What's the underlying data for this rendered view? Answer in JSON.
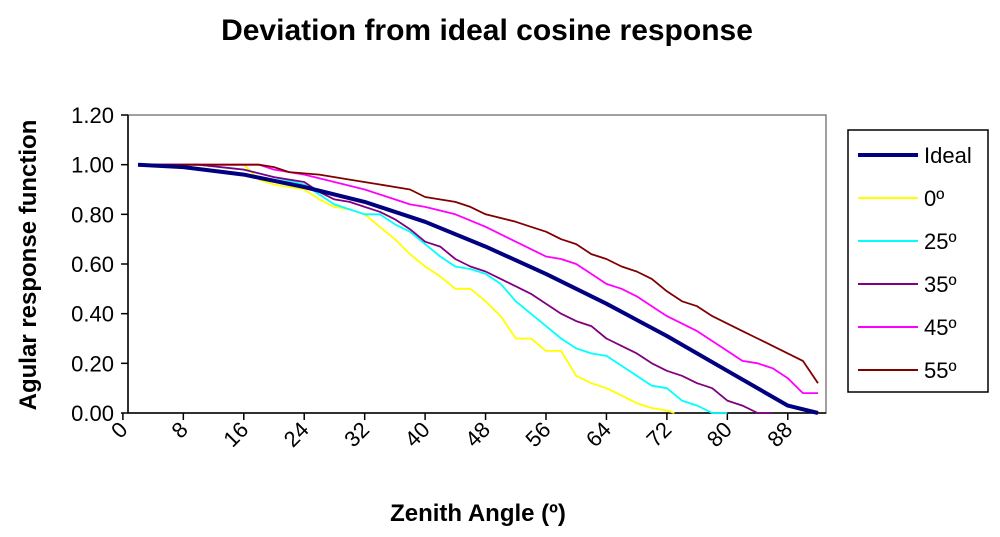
{
  "chart_data": {
    "type": "line",
    "title": "Deviation from ideal cosine response",
    "xlabel": "Zenith Angle (º)",
    "ylabel": "Agular response function",
    "xlim": [
      0,
      92
    ],
    "ylim": [
      0,
      1.2
    ],
    "x_ticks": [
      0,
      8,
      16,
      24,
      32,
      40,
      48,
      56,
      64,
      72,
      80,
      88
    ],
    "y_ticks": [
      "0.00",
      "0.20",
      "0.40",
      "0.60",
      "0.80",
      "1.00",
      "1.20"
    ],
    "legend_position": "right",
    "grid": false,
    "series": [
      {
        "name": "Ideal",
        "color": "#000080",
        "x": [
          2,
          8,
          16,
          24,
          32,
          40,
          48,
          56,
          64,
          72,
          80,
          88,
          92
        ],
        "values": [
          1.0,
          0.99,
          0.96,
          0.91,
          0.85,
          0.77,
          0.67,
          0.56,
          0.44,
          0.31,
          0.17,
          0.03,
          0.0
        ]
      },
      {
        "name": "0º",
        "color": "#ffff00",
        "x": [
          2,
          10,
          16,
          18,
          20,
          24,
          26,
          28,
          30,
          32,
          34,
          36,
          38,
          40,
          42,
          44,
          46,
          48,
          50,
          52,
          54,
          56,
          58,
          60,
          62,
          64,
          66,
          68,
          70,
          72,
          73
        ],
        "values": [
          1.0,
          1.0,
          1.0,
          0.94,
          0.92,
          0.9,
          0.86,
          0.83,
          0.82,
          0.8,
          0.75,
          0.7,
          0.64,
          0.59,
          0.55,
          0.5,
          0.5,
          0.45,
          0.39,
          0.3,
          0.3,
          0.25,
          0.25,
          0.15,
          0.12,
          0.1,
          0.07,
          0.04,
          0.02,
          0.01,
          0.0
        ]
      },
      {
        "name": "25º",
        "color": "#00ffff",
        "x": [
          2,
          10,
          16,
          20,
          24,
          26,
          28,
          30,
          32,
          34,
          36,
          38,
          40,
          42,
          44,
          46,
          48,
          50,
          52,
          54,
          56,
          58,
          60,
          62,
          64,
          66,
          68,
          70,
          72,
          74,
          76,
          78,
          80
        ],
        "values": [
          1.0,
          1.0,
          0.98,
          0.95,
          0.92,
          0.88,
          0.84,
          0.82,
          0.8,
          0.8,
          0.76,
          0.73,
          0.68,
          0.63,
          0.59,
          0.58,
          0.56,
          0.52,
          0.45,
          0.4,
          0.35,
          0.3,
          0.26,
          0.24,
          0.23,
          0.19,
          0.15,
          0.11,
          0.1,
          0.05,
          0.03,
          0.0,
          0.0
        ]
      },
      {
        "name": "35º",
        "color": "#800080",
        "x": [
          2,
          10,
          16,
          20,
          24,
          26,
          28,
          30,
          32,
          34,
          36,
          38,
          40,
          42,
          44,
          46,
          48,
          50,
          52,
          54,
          56,
          58,
          60,
          62,
          64,
          66,
          68,
          70,
          72,
          74,
          76,
          78,
          80,
          82,
          84,
          86
        ],
        "values": [
          1.0,
          1.0,
          0.98,
          0.95,
          0.93,
          0.89,
          0.86,
          0.85,
          0.83,
          0.81,
          0.78,
          0.74,
          0.69,
          0.67,
          0.62,
          0.59,
          0.57,
          0.54,
          0.51,
          0.48,
          0.44,
          0.4,
          0.37,
          0.35,
          0.3,
          0.27,
          0.24,
          0.2,
          0.17,
          0.15,
          0.12,
          0.1,
          0.05,
          0.03,
          0.0,
          0.0
        ]
      },
      {
        "name": "45º",
        "color": "#ff00ff",
        "x": [
          2,
          10,
          18,
          20,
          24,
          28,
          32,
          36,
          38,
          40,
          44,
          48,
          52,
          56,
          58,
          60,
          62,
          64,
          66,
          68,
          70,
          72,
          74,
          76,
          78,
          80,
          82,
          84,
          86,
          88,
          90,
          92
        ],
        "values": [
          1.0,
          1.0,
          1.0,
          0.98,
          0.96,
          0.93,
          0.9,
          0.86,
          0.84,
          0.83,
          0.8,
          0.75,
          0.69,
          0.63,
          0.62,
          0.6,
          0.56,
          0.52,
          0.5,
          0.47,
          0.43,
          0.39,
          0.36,
          0.33,
          0.29,
          0.25,
          0.21,
          0.2,
          0.18,
          0.14,
          0.08,
          0.08
        ]
      },
      {
        "name": "55º",
        "color": "#800000",
        "x": [
          2,
          10,
          18,
          20,
          22,
          26,
          30,
          34,
          36,
          38,
          40,
          44,
          46,
          48,
          52,
          54,
          56,
          58,
          60,
          62,
          64,
          66,
          68,
          70,
          72,
          74,
          76,
          78,
          80,
          82,
          84,
          86,
          88,
          90,
          92
        ],
        "values": [
          1.0,
          1.0,
          1.0,
          0.99,
          0.97,
          0.96,
          0.94,
          0.92,
          0.91,
          0.9,
          0.87,
          0.85,
          0.83,
          0.8,
          0.77,
          0.75,
          0.73,
          0.7,
          0.68,
          0.64,
          0.62,
          0.59,
          0.57,
          0.54,
          0.49,
          0.45,
          0.43,
          0.39,
          0.36,
          0.33,
          0.3,
          0.27,
          0.24,
          0.21,
          0.12
        ]
      }
    ]
  }
}
